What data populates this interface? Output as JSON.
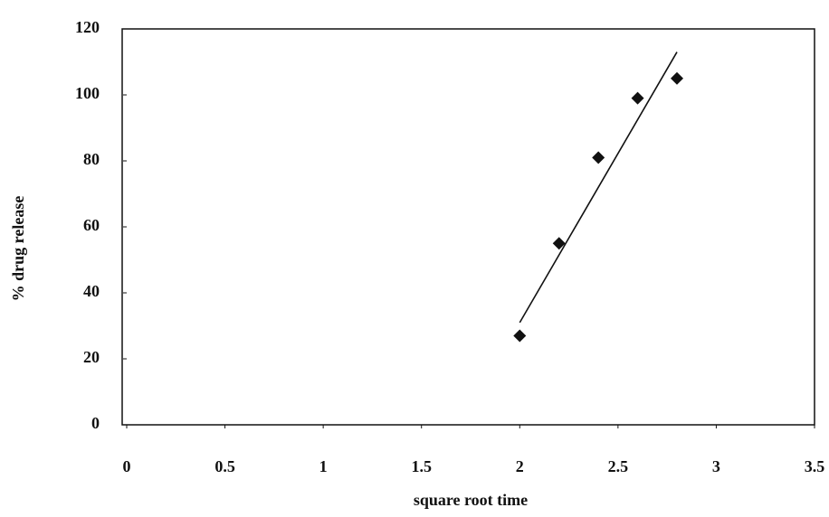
{
  "chart_data": {
    "type": "scatter",
    "x_label": "square root time",
    "y_label": "% drug release",
    "x": [
      2,
      2.2,
      2.4,
      2.6,
      2.8
    ],
    "values": [
      27,
      55,
      81,
      99,
      105
    ],
    "color": "#111111",
    "trendline": {
      "x": [
        2,
        2.8
      ],
      "values": [
        31,
        113
      ]
    },
    "xlim": [
      0,
      3.5
    ],
    "ylim": [
      0,
      120
    ],
    "xticks": [
      0,
      0.5,
      1,
      1.5,
      2,
      2.5,
      3,
      3.5
    ],
    "yticks": [
      0,
      20,
      40,
      60,
      80,
      100,
      120
    ],
    "grid": false
  }
}
